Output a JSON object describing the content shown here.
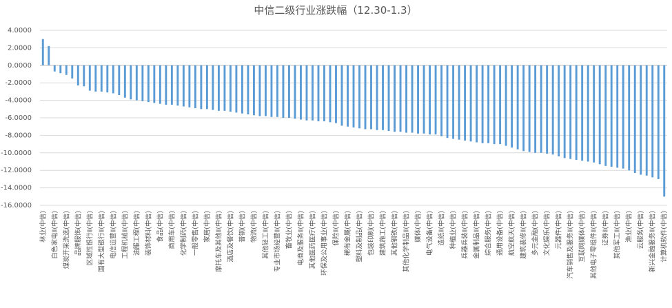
{
  "chart_data": {
    "type": "bar",
    "title": "中信二级行业涨跌幅（12.30-1.3）",
    "categories": [
      "林业(中信)",
      null,
      "白色家电Ⅱ(中信)",
      null,
      "煤炭开采洗选(中信)",
      null,
      "品牌服饰(中信)",
      null,
      "区域性银行Ⅱ(中信)",
      null,
      "国有大型银行Ⅱ(中信)",
      null,
      "电信运营Ⅱ(中信)",
      null,
      "工程机械Ⅱ(中信)",
      null,
      "油服工程(中信)",
      null,
      "装饰材料(中信)",
      null,
      "食品(中信)",
      null,
      "商用车(中信)",
      null,
      "化学制药(中信)",
      null,
      "一般零售(中信)",
      null,
      "家居(中信)",
      null,
      "摩托车及其他Ⅱ(中信)",
      null,
      "酒店及餐饮(中信)",
      null,
      "普钢(中信)",
      null,
      "物流(中信)",
      null,
      "其他轻工Ⅱ(中信)",
      null,
      "专业市场经营Ⅱ(中信)",
      null,
      "畜牧业(中信)",
      null,
      "电商及服务Ⅱ(中信)",
      null,
      "其他医药医疗(中信)",
      null,
      "环保及公用事业(中信)",
      null,
      "保险Ⅱ(中信)",
      null,
      "稀有金属(中信)",
      null,
      "塑料及制品(中信)",
      null,
      "包装印刷(中信)",
      null,
      "建筑施工(中信)",
      null,
      "其他钢铁(中信)",
      null,
      "其他化学制品Ⅱ(中信)",
      null,
      "媒体(中信)",
      null,
      "电气设备(中信)",
      null,
      "造纸Ⅱ(中信)",
      null,
      "种植业(中信)",
      null,
      "兵器兵装Ⅱ(中信)",
      null,
      "金属制品Ⅱ(中信)",
      null,
      "综合服务(中信)",
      null,
      "通用设备(中信)",
      null,
      "航空航天(中信)",
      null,
      "建筑装修Ⅱ(中信)",
      null,
      "多元金融(中信)",
      null,
      "文化娱乐(中信)",
      null,
      "元器件(中信)",
      null,
      "汽车销售及服务Ⅱ(中信)",
      null,
      "互联网媒体(中信)",
      null,
      "其他电子零组件Ⅱ(中信)",
      null,
      "证券Ⅱ(中信)",
      null,
      "其他军工Ⅱ(中信)",
      null,
      "渔业(中信)",
      null,
      "云服务(中信)",
      null,
      "新兴金融服务Ⅱ(中信)",
      null,
      "计算机软件(中信)"
    ],
    "values": [
      3.0,
      2.2,
      -0.7,
      -0.9,
      -1.1,
      -1.5,
      -2.3,
      -2.4,
      -2.9,
      -3.0,
      -3.0,
      -3.1,
      -3.2,
      -3.4,
      -3.7,
      -3.9,
      -4.0,
      -4.1,
      -4.2,
      -4.3,
      -4.4,
      -4.5,
      -4.5,
      -4.6,
      -4.7,
      -4.8,
      -4.9,
      -5.0,
      -5.0,
      -5.1,
      -5.2,
      -5.2,
      -5.3,
      -5.4,
      -5.5,
      -5.6,
      -5.7,
      -5.8,
      -5.8,
      -5.9,
      -5.9,
      -6.0,
      -6.0,
      -6.1,
      -6.2,
      -6.3,
      -6.3,
      -6.4,
      -6.4,
      -6.5,
      -6.6,
      -6.9,
      -7.0,
      -7.1,
      -7.2,
      -7.3,
      -7.3,
      -7.4,
      -7.4,
      -7.5,
      -7.6,
      -7.6,
      -7.7,
      -7.7,
      -7.8,
      -7.8,
      -7.9,
      -7.9,
      -8.1,
      -8.3,
      -8.4,
      -8.5,
      -8.6,
      -8.7,
      -8.8,
      -8.9,
      -8.9,
      -9.0,
      -9.0,
      -9.2,
      -9.4,
      -9.6,
      -9.8,
      -9.9,
      -10.0,
      -10.0,
      -10.1,
      -10.2,
      -10.4,
      -10.6,
      -10.7,
      -10.8,
      -10.9,
      -11.0,
      -11.1,
      -11.3,
      -11.5,
      -11.6,
      -11.7,
      -11.8,
      -12.0,
      -12.3,
      -12.5,
      -12.6,
      -12.8,
      -13.0,
      -15.0
    ],
    "color": "#5b9bd5",
    "ylim": [
      -16,
      4
    ],
    "yticks": [
      {
        "value": 4,
        "label": "4.0000"
      },
      {
        "value": 2,
        "label": "2.0000"
      },
      {
        "value": 0,
        "label": "0.0000"
      },
      {
        "value": -2,
        "label": "-2.0000"
      },
      {
        "value": -4,
        "label": "-4.0000"
      },
      {
        "value": -6,
        "label": "-6.0000"
      },
      {
        "value": -8,
        "label": "-8.0000"
      },
      {
        "value": -10,
        "label": "-10.0000"
      },
      {
        "value": -12,
        "label": "-12.0000"
      },
      {
        "value": -14,
        "label": "-14.0000"
      },
      {
        "value": -16,
        "label": "-16.0000"
      }
    ],
    "grid": true
  }
}
